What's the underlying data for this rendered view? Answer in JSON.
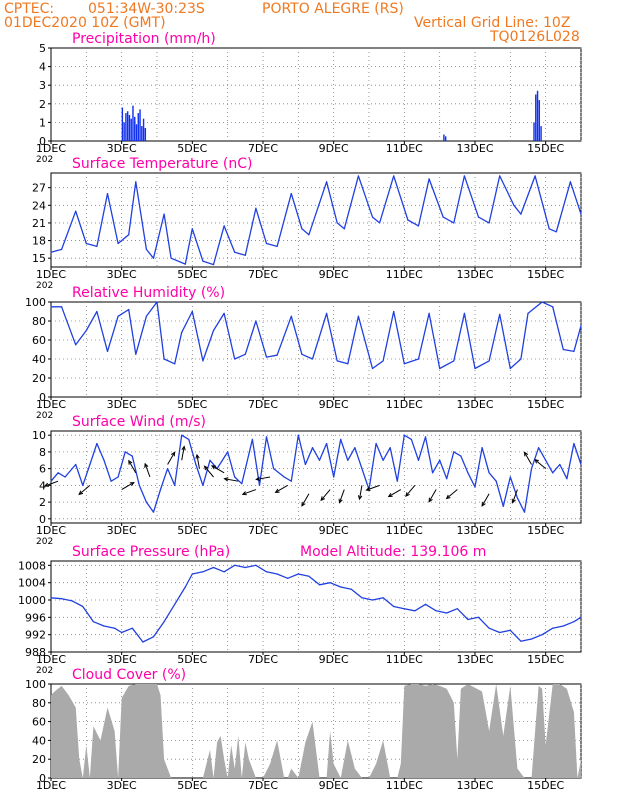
{
  "header": {
    "agency": "CPTEC:",
    "coords": "051:34W-30:23S",
    "location": "PORTO ALEGRE (RS)",
    "datetime": "01DEC2020 10Z (GMT)",
    "grid_note": "Vertical Grid Line: 10Z",
    "code": "TQ0126L028"
  },
  "colors": {
    "header_text": "#f07820",
    "panel_title": "#ff00aa",
    "series_line": "#2040e0",
    "bar": "#1030f0",
    "cloud_fill": "#aaaaaa",
    "grid": "#808080",
    "axis": "#000000"
  },
  "chart_data": [
    {
      "id": "precip",
      "type": "bar",
      "title": "Precipitation (mm/h)",
      "yticks": [
        0,
        1,
        2,
        3,
        4,
        5
      ],
      "ylim": [
        0,
        5
      ],
      "xlim": [
        1.0,
        16.0
      ],
      "xticks": [
        "1DEC",
        "3DEC",
        "5DEC",
        "7DEC",
        "9DEC",
        "11DEC",
        "13DEC",
        "15DEC"
      ],
      "x_extra_label": "202",
      "x": [
        3.02,
        3.07,
        3.12,
        3.17,
        3.22,
        3.27,
        3.32,
        3.37,
        3.42,
        3.47,
        3.52,
        3.57,
        3.62,
        3.67,
        12.12,
        12.17,
        14.67,
        14.72,
        14.77,
        14.82,
        14.87
      ],
      "values": [
        1.8,
        1.0,
        1.5,
        1.6,
        1.4,
        1.2,
        1.9,
        1.3,
        0.9,
        1.5,
        1.7,
        0.8,
        1.2,
        0.7,
        0.35,
        0.25,
        1.0,
        2.5,
        2.7,
        2.2,
        0.8
      ]
    },
    {
      "id": "temp",
      "type": "line",
      "title": "Surface Temperature (nC)",
      "yticks": [
        15,
        18,
        21,
        24,
        27
      ],
      "ylim": [
        13.5,
        29.5
      ],
      "xlim": [
        1.0,
        16.0
      ],
      "xticks": [
        "1DEC",
        "3DEC",
        "5DEC",
        "7DEC",
        "9DEC",
        "11DEC",
        "13DEC",
        "15DEC"
      ],
      "x_extra_label": "202",
      "x": [
        1.0,
        1.3,
        1.7,
        2.0,
        2.3,
        2.6,
        2.9,
        3.2,
        3.4,
        3.7,
        3.9,
        4.2,
        4.4,
        4.8,
        5.0,
        5.3,
        5.6,
        5.9,
        6.2,
        6.5,
        6.8,
        7.1,
        7.4,
        7.8,
        8.1,
        8.3,
        8.8,
        9.1,
        9.3,
        9.7,
        10.1,
        10.3,
        10.7,
        11.1,
        11.4,
        11.7,
        12.1,
        12.4,
        12.7,
        13.1,
        13.4,
        13.7,
        14.1,
        14.3,
        14.7,
        15.1,
        15.3,
        15.7,
        16.0
      ],
      "values": [
        16.0,
        16.5,
        23.0,
        17.5,
        17.0,
        26.0,
        17.5,
        19.0,
        28.0,
        16.5,
        15.0,
        22.5,
        15.0,
        14.0,
        20.0,
        14.5,
        13.9,
        20.5,
        16.0,
        15.5,
        23.5,
        17.5,
        17.0,
        26.0,
        20.0,
        19.0,
        28.0,
        21.0,
        20.0,
        29.0,
        22.0,
        21.0,
        29.0,
        21.5,
        20.5,
        28.5,
        22.0,
        21.0,
        29.0,
        22.0,
        21.0,
        29.0,
        24.0,
        22.5,
        29.0,
        20.0,
        19.5,
        28.0,
        22.5
      ]
    },
    {
      "id": "rh",
      "type": "line",
      "title": "Relative Humidity (%)",
      "yticks": [
        0,
        20,
        40,
        60,
        80,
        100
      ],
      "ylim": [
        0,
        100
      ],
      "xlim": [
        1.0,
        16.0
      ],
      "xticks": [
        "1DEC",
        "3DEC",
        "5DEC",
        "7DEC",
        "9DEC",
        "11DEC",
        "13DEC",
        "15DEC"
      ],
      "x_extra_label": "202",
      "x": [
        1.0,
        1.3,
        1.7,
        2.0,
        2.3,
        2.6,
        2.9,
        3.2,
        3.4,
        3.7,
        4.0,
        4.2,
        4.5,
        4.7,
        5.0,
        5.3,
        5.6,
        5.9,
        6.2,
        6.5,
        6.8,
        7.1,
        7.4,
        7.8,
        8.1,
        8.4,
        8.8,
        9.1,
        9.4,
        9.7,
        10.1,
        10.4,
        10.7,
        11.0,
        11.4,
        11.7,
        12.0,
        12.4,
        12.7,
        13.0,
        13.4,
        13.7,
        14.0,
        14.3,
        14.5,
        14.9,
        15.2,
        15.5,
        15.8,
        16.0
      ],
      "values": [
        95,
        95,
        55,
        70,
        90,
        48,
        85,
        92,
        45,
        85,
        100,
        40,
        35,
        68,
        90,
        38,
        70,
        88,
        40,
        45,
        80,
        42,
        44,
        85,
        45,
        40,
        88,
        38,
        35,
        85,
        30,
        38,
        90,
        35,
        40,
        88,
        30,
        38,
        88,
        30,
        38,
        87,
        30,
        40,
        88,
        100,
        95,
        50,
        48,
        75
      ]
    },
    {
      "id": "wind",
      "type": "line",
      "title": "Surface Wind (m/s)",
      "yticks": [
        0,
        2,
        4,
        6,
        8,
        10
      ],
      "ylim": [
        -0.5,
        10.5
      ],
      "xlim": [
        1.0,
        16.0
      ],
      "xticks": [
        "1DEC",
        "3DEC",
        "5DEC",
        "7DEC",
        "9DEC",
        "11DEC",
        "13DEC",
        "15DEC"
      ],
      "x_extra_label": "202",
      "x": [
        1.0,
        1.2,
        1.4,
        1.7,
        1.9,
        2.1,
        2.3,
        2.5,
        2.7,
        2.9,
        3.1,
        3.3,
        3.5,
        3.7,
        3.9,
        4.1,
        4.3,
        4.5,
        4.7,
        4.9,
        5.1,
        5.3,
        5.5,
        5.7,
        6.0,
        6.2,
        6.4,
        6.7,
        6.9,
        7.1,
        7.3,
        7.6,
        7.8,
        8.0,
        8.2,
        8.4,
        8.6,
        8.8,
        9.0,
        9.2,
        9.4,
        9.6,
        9.8,
        10.0,
        10.2,
        10.4,
        10.6,
        10.8,
        11.0,
        11.2,
        11.4,
        11.6,
        11.8,
        12.0,
        12.2,
        12.4,
        12.6,
        12.8,
        13.0,
        13.2,
        13.4,
        13.6,
        13.8,
        14.0,
        14.2,
        14.4,
        14.6,
        14.8,
        15.0,
        15.2,
        15.4,
        15.6,
        15.8,
        16.0
      ],
      "values": [
        4.5,
        5.5,
        5.0,
        6.5,
        4.0,
        6.5,
        9.0,
        7.0,
        4.5,
        5.0,
        8.0,
        7.5,
        4.0,
        2.0,
        0.8,
        3.5,
        6.0,
        4.0,
        10.0,
        9.5,
        6.5,
        4.0,
        7.0,
        6.0,
        8.0,
        5.0,
        4.2,
        9.5,
        4.0,
        9.8,
        6.0,
        5.0,
        4.5,
        10.0,
        6.5,
        8.5,
        7.0,
        9.0,
        5.0,
        9.5,
        7.0,
        8.5,
        6.0,
        3.5,
        9.0,
        7.0,
        8.5,
        4.5,
        10.0,
        9.5,
        7.0,
        9.8,
        5.5,
        7.0,
        4.8,
        8.0,
        7.5,
        5.5,
        3.8,
        8.5,
        5.5,
        4.5,
        1.5,
        5.0,
        2.5,
        0.8,
        6.0,
        8.5,
        7.0,
        5.5,
        6.5,
        4.8,
        9.0,
        6.5
      ],
      "arrows_x": [
        1.2,
        2.1,
        3.0,
        3.4,
        3.8,
        4.3,
        4.7,
        5.2,
        5.6,
        5.9,
        6.3,
        6.8,
        7.2,
        7.7,
        8.3,
        8.9,
        9.3,
        9.8,
        10.3,
        10.9,
        11.3,
        11.9,
        12.5,
        13.4,
        14.2,
        14.6,
        15.0
      ],
      "arrows_y": [
        4.5,
        4.0,
        3.5,
        5.5,
        5.0,
        6.5,
        7.0,
        6.0,
        5.0,
        5.5,
        4.5,
        3.5,
        5.0,
        4.0,
        3.0,
        3.5,
        3.5,
        4.0,
        4.0,
        3.5,
        4.0,
        3.5,
        3.5,
        3.0,
        3.5,
        6.5,
        6.0
      ],
      "arrows_deg": [
        200,
        220,
        30,
        120,
        110,
        60,
        80,
        100,
        130,
        150,
        170,
        200,
        190,
        210,
        240,
        230,
        250,
        260,
        200,
        210,
        230,
        240,
        220,
        240,
        250,
        120,
        140
      ]
    },
    {
      "id": "pressure",
      "type": "line",
      "title": "Surface Pressure (hPa)",
      "annotation": "Model Altitude: 139.106 m",
      "yticks": [
        988,
        992,
        996,
        1000,
        1004,
        1008
      ],
      "ylim": [
        988,
        1009
      ],
      "xlim": [
        1.0,
        16.0
      ],
      "xticks": [
        "1DEC",
        "3DEC",
        "5DEC",
        "7DEC",
        "9DEC",
        "11DEC",
        "13DEC",
        "15DEC"
      ],
      "x_extra_label": "202",
      "x": [
        1.0,
        1.3,
        1.6,
        1.9,
        2.2,
        2.5,
        2.8,
        3.0,
        3.3,
        3.6,
        3.9,
        4.2,
        4.5,
        4.8,
        5.0,
        5.3,
        5.6,
        5.9,
        6.2,
        6.5,
        6.8,
        7.1,
        7.4,
        7.7,
        8.0,
        8.3,
        8.6,
        8.9,
        9.2,
        9.5,
        9.8,
        10.1,
        10.4,
        10.7,
        11.0,
        11.3,
        11.6,
        11.9,
        12.2,
        12.5,
        12.8,
        13.1,
        13.4,
        13.7,
        14.0,
        14.3,
        14.6,
        14.9,
        15.2,
        15.5,
        15.8,
        16.0
      ],
      "values": [
        1000.5,
        1000.3,
        999.8,
        998.5,
        995.0,
        994.0,
        993.5,
        992.5,
        993.5,
        990.3,
        991.5,
        995.0,
        999.0,
        1003.0,
        1006.0,
        1006.5,
        1007.5,
        1006.5,
        1008.0,
        1007.5,
        1008.0,
        1006.5,
        1006.0,
        1005.0,
        1006.0,
        1005.5,
        1003.5,
        1004.0,
        1003.0,
        1002.5,
        1000.5,
        1000.0,
        1000.5,
        998.5,
        998.0,
        997.5,
        999.0,
        997.5,
        997.0,
        998.0,
        995.5,
        996.0,
        993.5,
        992.5,
        993.0,
        990.5,
        991.0,
        992.0,
        993.5,
        994.0,
        995.0,
        996.0
      ]
    },
    {
      "id": "cloud",
      "type": "area",
      "title": "Cloud Cover (%)",
      "yticks": [
        0,
        20,
        40,
        60,
        80,
        100
      ],
      "ylim": [
        0,
        100
      ],
      "xlim": [
        1.0,
        16.0
      ],
      "xticks": [
        "1DEC",
        "3DEC",
        "5DEC",
        "7DEC",
        "9DEC",
        "11DEC",
        "13DEC",
        "15DEC"
      ],
      "x": [
        1.0,
        1.1,
        1.3,
        1.5,
        1.7,
        1.8,
        1.9,
        2.0,
        2.1,
        2.2,
        2.4,
        2.6,
        2.8,
        2.9,
        3.0,
        3.2,
        3.4,
        3.5,
        3.6,
        3.8,
        3.9,
        4.0,
        4.1,
        4.2,
        4.4,
        4.6,
        4.8,
        5.0,
        5.2,
        5.3,
        5.5,
        5.6,
        5.7,
        5.8,
        5.9,
        6.0,
        6.1,
        6.2,
        6.3,
        6.4,
        6.5,
        6.6,
        6.8,
        7.0,
        7.2,
        7.4,
        7.6,
        7.7,
        7.8,
        8.0,
        8.2,
        8.4,
        8.6,
        8.8,
        8.9,
        9.0,
        9.2,
        9.4,
        9.6,
        9.8,
        10.0,
        10.2,
        10.4,
        10.6,
        10.8,
        10.9,
        11.0,
        11.2,
        11.4,
        11.6,
        11.8,
        12.0,
        12.2,
        12.4,
        12.5,
        12.6,
        12.8,
        13.0,
        13.2,
        13.4,
        13.6,
        13.8,
        14.0,
        14.2,
        14.4,
        14.5,
        14.6,
        14.8,
        14.9,
        15.0,
        15.2,
        15.4,
        15.6,
        15.8,
        15.9,
        16.0
      ],
      "values": [
        88,
        92,
        98,
        88,
        75,
        20,
        0,
        35,
        0,
        55,
        40,
        75,
        50,
        0,
        85,
        98,
        100,
        100,
        100,
        100,
        100,
        100,
        88,
        20,
        0,
        0,
        0,
        0,
        0,
        0,
        30,
        0,
        38,
        45,
        20,
        0,
        35,
        10,
        45,
        0,
        38,
        20,
        0,
        0,
        15,
        40,
        0,
        0,
        10,
        0,
        38,
        60,
        0,
        0,
        50,
        15,
        0,
        40,
        10,
        0,
        0,
        15,
        40,
        0,
        0,
        15,
        98,
        100,
        100,
        98,
        100,
        98,
        95,
        80,
        20,
        95,
        100,
        96,
        92,
        50,
        100,
        45,
        98,
        10,
        0,
        0,
        0,
        98,
        95,
        35,
        100,
        100,
        95,
        70,
        0,
        20
      ]
    }
  ]
}
